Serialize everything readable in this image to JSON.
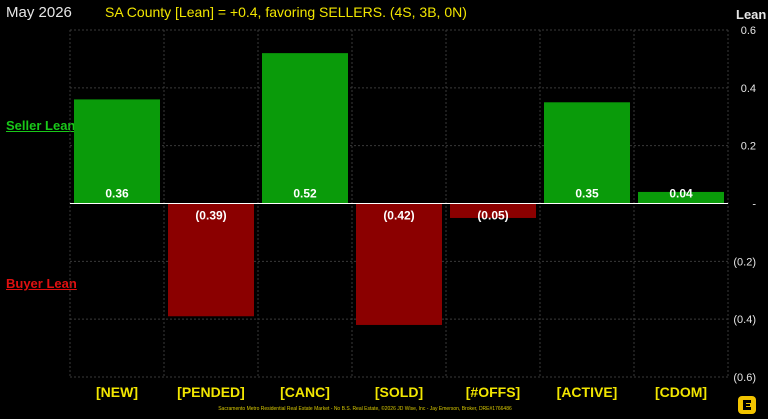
{
  "header": {
    "date": "May 2026",
    "title": "SA County [Lean] = +0.4, favoring SELLERS. (4S, 3B, 0N)",
    "lean_label": "Lean",
    "seller_label": "Seller Lean",
    "buyer_label": "Buyer Lean"
  },
  "footer": {
    "text": "Sacramento Metro Residential Real Estate Market - No B.S. Real Estate, ©2026 JD Wise, Inc - Jay Emerson, Broker, DRE#1766486"
  },
  "logo": {
    "icon": "logo-icon"
  },
  "colors": {
    "positive": "#0a9b0a",
    "negative": "#8b0000",
    "category_text": "#f2e600",
    "value_text": "#ffffff",
    "grid": "#3a3a3a",
    "axis_text": "#e6e6e6",
    "baseline": "#ffffff"
  },
  "chart_data": {
    "type": "bar",
    "categories": [
      "[NEW]",
      "[PENDED]",
      "[CANC]",
      "[SOLD]",
      "[#OFFS]",
      "[ACTIVE]",
      "[CDOM]"
    ],
    "values": [
      0.36,
      -0.39,
      0.52,
      -0.42,
      -0.05,
      0.35,
      0.04
    ],
    "value_labels": [
      "0.36",
      "(0.39)",
      "0.52",
      "(0.42)",
      "(0.05)",
      "0.35",
      "0.04"
    ],
    "ylabel": "Lean",
    "ylim": [
      -0.6,
      0.6
    ],
    "yticks": [
      0.6,
      0.4,
      0.2,
      0,
      -0.2,
      -0.4,
      -0.6
    ],
    "ytick_labels": [
      "0.6",
      "0.4",
      "0.2",
      "-",
      "(0.2)",
      "(0.4)",
      "(0.6)"
    ],
    "grid": true
  }
}
